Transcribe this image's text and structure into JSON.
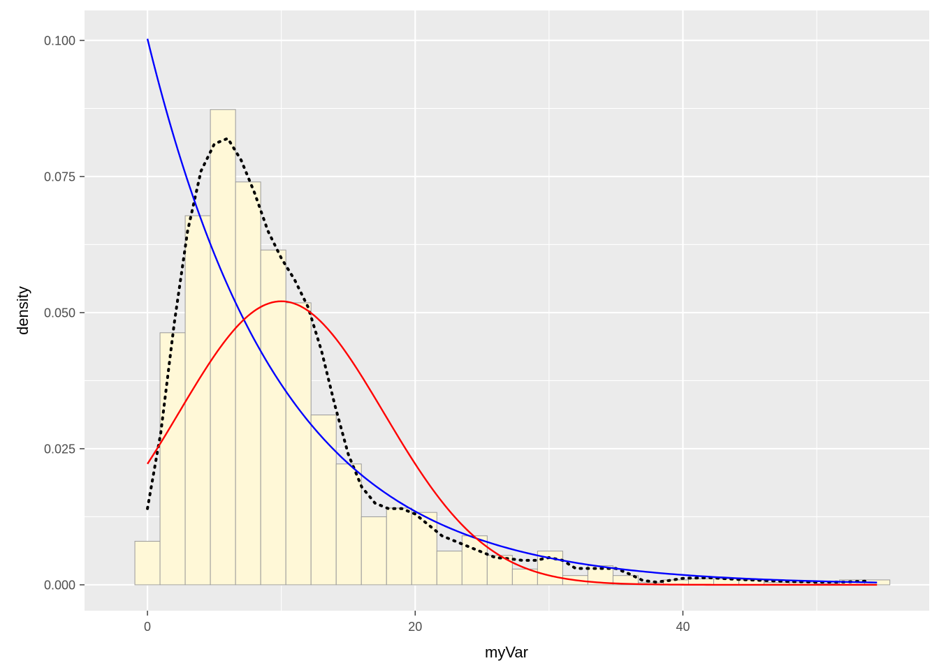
{
  "chart_data": {
    "type": "histogram",
    "xlabel": "myVar",
    "ylabel": "density",
    "xlim": [
      -4.7,
      58.4
    ],
    "ylim": [
      -0.00475,
      0.1055
    ],
    "x_ticks": [
      0,
      20,
      40
    ],
    "x_tick_labels": [
      "0",
      "20",
      "40"
    ],
    "y_ticks": [
      0,
      0.025,
      0.05,
      0.075,
      0.1
    ],
    "y_tick_labels": [
      "0.000",
      "0.025",
      "0.050",
      "0.075",
      "0.100"
    ],
    "grid": true,
    "legend": "none",
    "colors": {
      "panel": "#ebebeb",
      "grid": "#ffffff",
      "bar_fill": "#fff8d7",
      "bar_stroke": "#999999",
      "density": "#000000",
      "exponential": "#0000ff",
      "normal": "#ff0000"
    },
    "histogram": {
      "bin_width": 1.88,
      "bin_lefts": [
        -0.94,
        0.94,
        2.82,
        4.7,
        6.58,
        8.46,
        10.34,
        12.22,
        14.1,
        15.98,
        17.86,
        19.74,
        21.62,
        23.5,
        25.38,
        27.26,
        29.14,
        31.02,
        32.9,
        34.78,
        36.66,
        38.54,
        40.42,
        42.3,
        44.18,
        46.06,
        47.94,
        49.82,
        51.7,
        53.58
      ],
      "densities": [
        0.008,
        0.0463,
        0.0678,
        0.0873,
        0.074,
        0.0615,
        0.0518,
        0.0312,
        0.0222,
        0.0125,
        0.0141,
        0.0133,
        0.0062,
        0.009,
        0.0054,
        0.0029,
        0.0062,
        0.0017,
        0.0035,
        0.0017,
        0.0004,
        0.0009,
        0.0011,
        0.0011,
        0.0009,
        0.0004,
        0.0004,
        0.0002,
        0.0009,
        0.0009
      ]
    },
    "series": [
      {
        "line": "dotted",
        "x": [
          0,
          1,
          2,
          3,
          4,
          5,
          6,
          7,
          8,
          9,
          10,
          11,
          12,
          13,
          14,
          15,
          16,
          17,
          18,
          19,
          20,
          21,
          22,
          23,
          24,
          25,
          26,
          27,
          28,
          29,
          30,
          31,
          32,
          33,
          34,
          35,
          36,
          37,
          38,
          39,
          40,
          42,
          44,
          46,
          48,
          50,
          52,
          54
        ],
        "y": [
          0.014,
          0.028,
          0.048,
          0.065,
          0.076,
          0.081,
          0.082,
          0.078,
          0.072,
          0.065,
          0.06,
          0.056,
          0.051,
          0.043,
          0.033,
          0.024,
          0.018,
          0.015,
          0.014,
          0.014,
          0.013,
          0.011,
          0.009,
          0.008,
          0.007,
          0.006,
          0.005,
          0.0048,
          0.0045,
          0.0045,
          0.005,
          0.0045,
          0.003,
          0.003,
          0.003,
          0.003,
          0.002,
          0.0008,
          0.0005,
          0.0008,
          0.0012,
          0.0013,
          0.001,
          0.0008,
          0.0006,
          0.0005,
          0.0005,
          0.0007
        ]
      },
      {
        "line": "solid",
        "function": "exponential_density",
        "rate": 0.1003,
        "x_range": [
          0,
          54.5
        ]
      },
      {
        "line": "solid",
        "function": "normal_density",
        "mean": 10,
        "sd": 7.66,
        "x_range": [
          0,
          54.5
        ]
      }
    ]
  }
}
